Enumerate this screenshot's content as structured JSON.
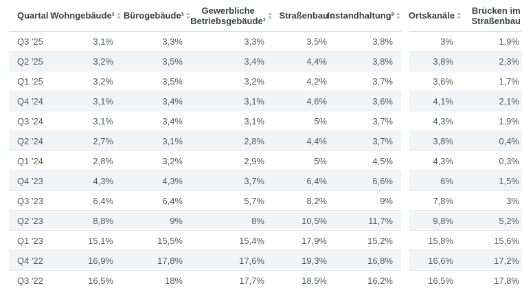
{
  "colors": {
    "background": "#ffffff",
    "stripe_row": "#f2f5f7",
    "row_border": "#e9ebee",
    "header_border": "#c7ccd1",
    "header_text": "#3b4046",
    "body_text": "#53585e",
    "sort_icon": "#b6bcc3"
  },
  "chart_data": {
    "type": "table",
    "columns": [
      {
        "id": "quartal",
        "label": "Quartal",
        "lines": [
          "Quartal"
        ],
        "align": "left",
        "section": "left",
        "sortable": true
      },
      {
        "id": "wohngebaeude",
        "label": "Wohngebäude¹",
        "lines": [
          "Wohngebäude¹"
        ],
        "align": "right",
        "section": "left",
        "sortable": true
      },
      {
        "id": "buerogebaeude",
        "label": "Bürogebäude¹",
        "lines": [
          "Bürogebäude¹"
        ],
        "align": "right",
        "section": "left",
        "sortable": true
      },
      {
        "id": "betriebsgebaeude",
        "label": "Gewerbliche Betriebsgebäude¹",
        "lines": [
          "Gewerbliche",
          "Betriebsgebäude¹"
        ],
        "align": "right",
        "section": "left",
        "sortable": true
      },
      {
        "id": "strassenbau",
        "label": "Straßenbau",
        "lines": [
          "Straßenbau"
        ],
        "align": "right",
        "section": "left",
        "sortable": true
      },
      {
        "id": "instandhaltung",
        "label": "Instandhaltung²",
        "lines": [
          "Instandhaltung²"
        ],
        "align": "right",
        "section": "left",
        "sortable": true
      },
      {
        "id": "ortskanaele",
        "label": "Ortskanäle",
        "lines": [
          "Ortskanäle"
        ],
        "align": "right",
        "section": "right",
        "sortable": true
      },
      {
        "id": "bruecken",
        "label": "Brücken im Straßenbau",
        "lines": [
          "Brücken im",
          "Straßenbau"
        ],
        "align": "right",
        "section": "right",
        "sortable": true
      }
    ],
    "rows": [
      [
        "Q3 '25",
        "3,1%",
        "3,3%",
        "3,3%",
        "3,5%",
        "3,8%",
        "3%",
        "1,9%"
      ],
      [
        "Q2 '25",
        "3,2%",
        "3,5%",
        "3,4%",
        "4,4%",
        "3,8%",
        "3,8%",
        "2,3%"
      ],
      [
        "Q1 '25",
        "3,2%",
        "3,5%",
        "3,2%",
        "4,2%",
        "3,7%",
        "3,6%",
        "1,7%"
      ],
      [
        "Q4 '24",
        "3,1%",
        "3,4%",
        "3,1%",
        "4,6%",
        "3,6%",
        "4,1%",
        "2,1%"
      ],
      [
        "Q3 '24",
        "3,1%",
        "3,4%",
        "3,1%",
        "5%",
        "3,7%",
        "4,3%",
        "1,9%"
      ],
      [
        "Q2 '24",
        "2,7%",
        "3,1%",
        "2,8%",
        "4,4%",
        "3,7%",
        "3,8%",
        "0,4%"
      ],
      [
        "Q1 '24",
        "2,8%",
        "3,2%",
        "2,9%",
        "5%",
        "4,5%",
        "4,3%",
        "0,3%"
      ],
      [
        "Q4 '23",
        "4,3%",
        "4,3%",
        "3,7%",
        "6,4%",
        "6,6%",
        "6%",
        "1,5%"
      ],
      [
        "Q3 '23",
        "6,4%",
        "6,4%",
        "5,7%",
        "8,2%",
        "9%",
        "7,8%",
        "3%"
      ],
      [
        "Q2 '23",
        "8,8%",
        "9%",
        "8%",
        "10,5%",
        "11,7%",
        "9,8%",
        "5,2%"
      ],
      [
        "Q1 '23",
        "15,1%",
        "15,5%",
        "15,4%",
        "17,9%",
        "15,2%",
        "15,8%",
        "15,6%"
      ],
      [
        "Q4 '22",
        "16,9%",
        "17,8%",
        "17,6%",
        "19,3%",
        "16,8%",
        "16,6%",
        "17,2%"
      ],
      [
        "Q3 '22",
        "16,5%",
        "18%",
        "17,7%",
        "18,5%",
        "16,2%",
        "16,5%",
        "17,8%"
      ]
    ]
  }
}
